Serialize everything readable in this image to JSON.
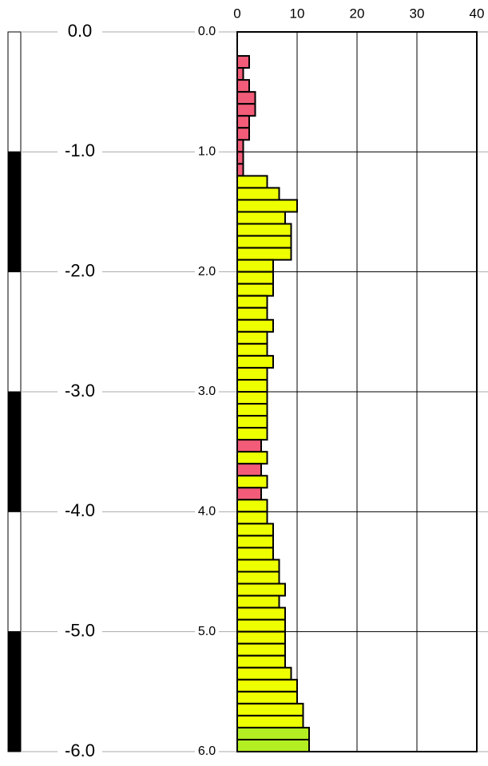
{
  "chart_data": {
    "type": "histogram",
    "orientation": "horizontal",
    "bins": [
      0.2,
      0.3,
      0.4,
      0.5,
      0.6,
      0.7,
      0.8,
      0.9,
      1.0,
      1.1,
      1.2,
      1.3,
      1.4,
      1.5,
      1.6,
      1.7,
      1.8,
      1.9,
      2.0,
      2.1,
      2.2,
      2.3,
      2.4,
      2.5,
      2.6,
      2.7,
      2.8,
      2.9,
      3.0,
      3.1,
      3.2,
      3.3,
      3.4,
      3.5,
      3.6,
      3.7,
      3.8,
      3.9,
      4.0,
      4.1,
      4.2,
      4.3,
      4.4,
      4.5,
      4.6,
      4.7,
      4.8,
      4.9,
      5.0,
      5.1,
      5.2,
      5.3,
      5.4,
      5.5,
      5.6,
      5.7,
      5.8,
      5.9,
      6.0
    ],
    "values": [
      2,
      1,
      2,
      3,
      3,
      2,
      2,
      1,
      1,
      1,
      5,
      7,
      10,
      8,
      9,
      9,
      9,
      6,
      6,
      6,
      5,
      5,
      6,
      5,
      5,
      6,
      5,
      5,
      5,
      5,
      5,
      5,
      4,
      5,
      4,
      5,
      4,
      5,
      5,
      6,
      6,
      6,
      7,
      7,
      8,
      7,
      8,
      8,
      8,
      8,
      8,
      9,
      10,
      10,
      11,
      11,
      12,
      12
    ],
    "colors": [
      "#f25c78",
      "#f25c78",
      "#f25c78",
      "#f25c78",
      "#f25c78",
      "#f25c78",
      "#f25c78",
      "#f25c78",
      "#f25c78",
      "#f25c78",
      "#eeff00",
      "#eeff00",
      "#eeff00",
      "#eeff00",
      "#eeff00",
      "#eeff00",
      "#eeff00",
      "#eeff00",
      "#eeff00",
      "#eeff00",
      "#eeff00",
      "#eeff00",
      "#eeff00",
      "#eeff00",
      "#eeff00",
      "#eeff00",
      "#eeff00",
      "#eeff00",
      "#eeff00",
      "#eeff00",
      "#eeff00",
      "#eeff00",
      "#f25c78",
      "#eeff00",
      "#f25c78",
      "#eeff00",
      "#f25c78",
      "#eeff00",
      "#eeff00",
      "#eeff00",
      "#eeff00",
      "#eeff00",
      "#eeff00",
      "#eeff00",
      "#eeff00",
      "#eeff00",
      "#eeff00",
      "#eeff00",
      "#eeff00",
      "#eeff00",
      "#eeff00",
      "#eeff00",
      "#eeff00",
      "#eeff00",
      "#eeff00",
      "#eeff00",
      "#b3ee22",
      "#b3ee22"
    ],
    "xlim": [
      0,
      40
    ],
    "xticks": [
      0,
      10,
      20,
      30,
      40
    ],
    "ylim": [
      0,
      6
    ],
    "yticks": [
      {
        "value": 0,
        "label": "0.0"
      },
      {
        "value": 1,
        "label": "1.0"
      },
      {
        "value": 2,
        "label": "2.0"
      },
      {
        "value": 3,
        "label": "3.0"
      },
      {
        "value": 4,
        "label": "4.0"
      },
      {
        "value": 5,
        "label": "5.0"
      },
      {
        "value": 6,
        "label": "6.0"
      }
    ],
    "elevation_ticks": [
      {
        "value": 0,
        "label": "0.0"
      },
      {
        "value": -1,
        "label": "-1.0"
      },
      {
        "value": -2,
        "label": "-2.0"
      },
      {
        "value": -3,
        "label": "-3.0"
      },
      {
        "value": -4,
        "label": "-4.0"
      },
      {
        "value": -5,
        "label": "-5.0"
      },
      {
        "value": -6,
        "label": "-6.0"
      }
    ],
    "grid": true
  }
}
